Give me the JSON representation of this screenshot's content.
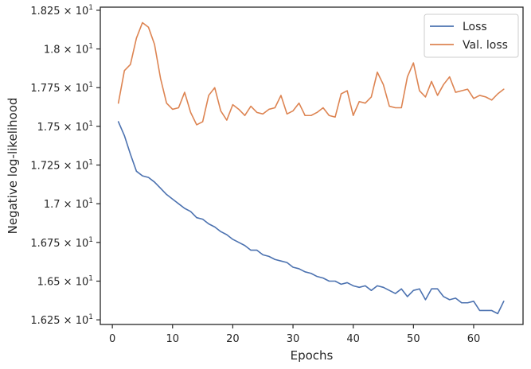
{
  "chart_data": {
    "type": "line",
    "xlabel": "Epochs",
    "ylabel": "Negative log-likelihood",
    "xlim": [
      -2,
      68.2
    ],
    "ylim": [
      16.22,
      18.27
    ],
    "x_ticks": [
      {
        "value": 0,
        "label": "0"
      },
      {
        "value": 10,
        "label": "10"
      },
      {
        "value": 20,
        "label": "20"
      },
      {
        "value": 30,
        "label": "30"
      },
      {
        "value": 40,
        "label": "40"
      },
      {
        "value": 50,
        "label": "50"
      },
      {
        "value": 60,
        "label": "60"
      }
    ],
    "y_ticks": [
      {
        "value": 16.25,
        "mantissa": "1.625",
        "sep": " × ",
        "base": "10",
        "exp": "1"
      },
      {
        "value": 16.5,
        "mantissa": "1.65",
        "sep": " × ",
        "base": "10",
        "exp": "1"
      },
      {
        "value": 16.75,
        "mantissa": "1.675",
        "sep": " × ",
        "base": "10",
        "exp": "1"
      },
      {
        "value": 17.0,
        "mantissa": "1.7",
        "sep": " × ",
        "base": "10",
        "exp": "1"
      },
      {
        "value": 17.25,
        "mantissa": "1.725",
        "sep": " × ",
        "base": "10",
        "exp": "1"
      },
      {
        "value": 17.5,
        "mantissa": "1.75",
        "sep": " × ",
        "base": "10",
        "exp": "1"
      },
      {
        "value": 17.75,
        "mantissa": "1.775",
        "sep": " × ",
        "base": "10",
        "exp": "1"
      },
      {
        "value": 18.0,
        "mantissa": "1.8",
        "sep": " × ",
        "base": "10",
        "exp": "1"
      },
      {
        "value": 18.25,
        "mantissa": "1.825",
        "sep": " × ",
        "base": "10",
        "exp": "1"
      }
    ],
    "grid": false,
    "legend_position": "top-right",
    "x": [
      1,
      2,
      3,
      4,
      5,
      6,
      7,
      8,
      9,
      10,
      11,
      12,
      13,
      14,
      15,
      16,
      17,
      18,
      19,
      20,
      21,
      22,
      23,
      24,
      25,
      26,
      27,
      28,
      29,
      30,
      31,
      32,
      33,
      34,
      35,
      36,
      37,
      38,
      39,
      40,
      41,
      42,
      43,
      44,
      45,
      46,
      47,
      48,
      49,
      50,
      51,
      52,
      53,
      54,
      55,
      56,
      57,
      58,
      59,
      60,
      61,
      62,
      63,
      64,
      65
    ],
    "series": [
      {
        "name": "Loss",
        "color": "#4c72b0",
        "values": [
          17.53,
          17.44,
          17.32,
          17.21,
          17.18,
          17.17,
          17.14,
          17.1,
          17.06,
          17.03,
          17.0,
          16.97,
          16.95,
          16.91,
          16.9,
          16.87,
          16.85,
          16.82,
          16.8,
          16.77,
          16.75,
          16.73,
          16.7,
          16.7,
          16.67,
          16.66,
          16.64,
          16.63,
          16.62,
          16.59,
          16.58,
          16.56,
          16.55,
          16.53,
          16.52,
          16.5,
          16.5,
          16.48,
          16.49,
          16.47,
          16.46,
          16.47,
          16.44,
          16.47,
          16.46,
          16.44,
          16.42,
          16.45,
          16.4,
          16.44,
          16.45,
          16.38,
          16.45,
          16.45,
          16.4,
          16.38,
          16.39,
          16.36,
          16.36,
          16.37,
          16.31,
          16.31,
          16.31,
          16.29,
          16.37
        ]
      },
      {
        "name": "Val. loss",
        "color": "#dd8452",
        "values": [
          17.65,
          17.86,
          17.9,
          18.07,
          18.17,
          18.14,
          18.03,
          17.81,
          17.65,
          17.61,
          17.62,
          17.72,
          17.59,
          17.51,
          17.53,
          17.7,
          17.75,
          17.6,
          17.54,
          17.64,
          17.61,
          17.57,
          17.63,
          17.59,
          17.58,
          17.61,
          17.62,
          17.7,
          17.58,
          17.6,
          17.65,
          17.57,
          17.57,
          17.59,
          17.62,
          17.57,
          17.56,
          17.71,
          17.73,
          17.57,
          17.66,
          17.65,
          17.69,
          17.85,
          17.77,
          17.63,
          17.62,
          17.62,
          17.82,
          17.91,
          17.73,
          17.69,
          17.79,
          17.7,
          17.77,
          17.82,
          17.72,
          17.73,
          17.74,
          17.68,
          17.7,
          17.69,
          17.67,
          17.71,
          17.74
        ]
      }
    ]
  }
}
